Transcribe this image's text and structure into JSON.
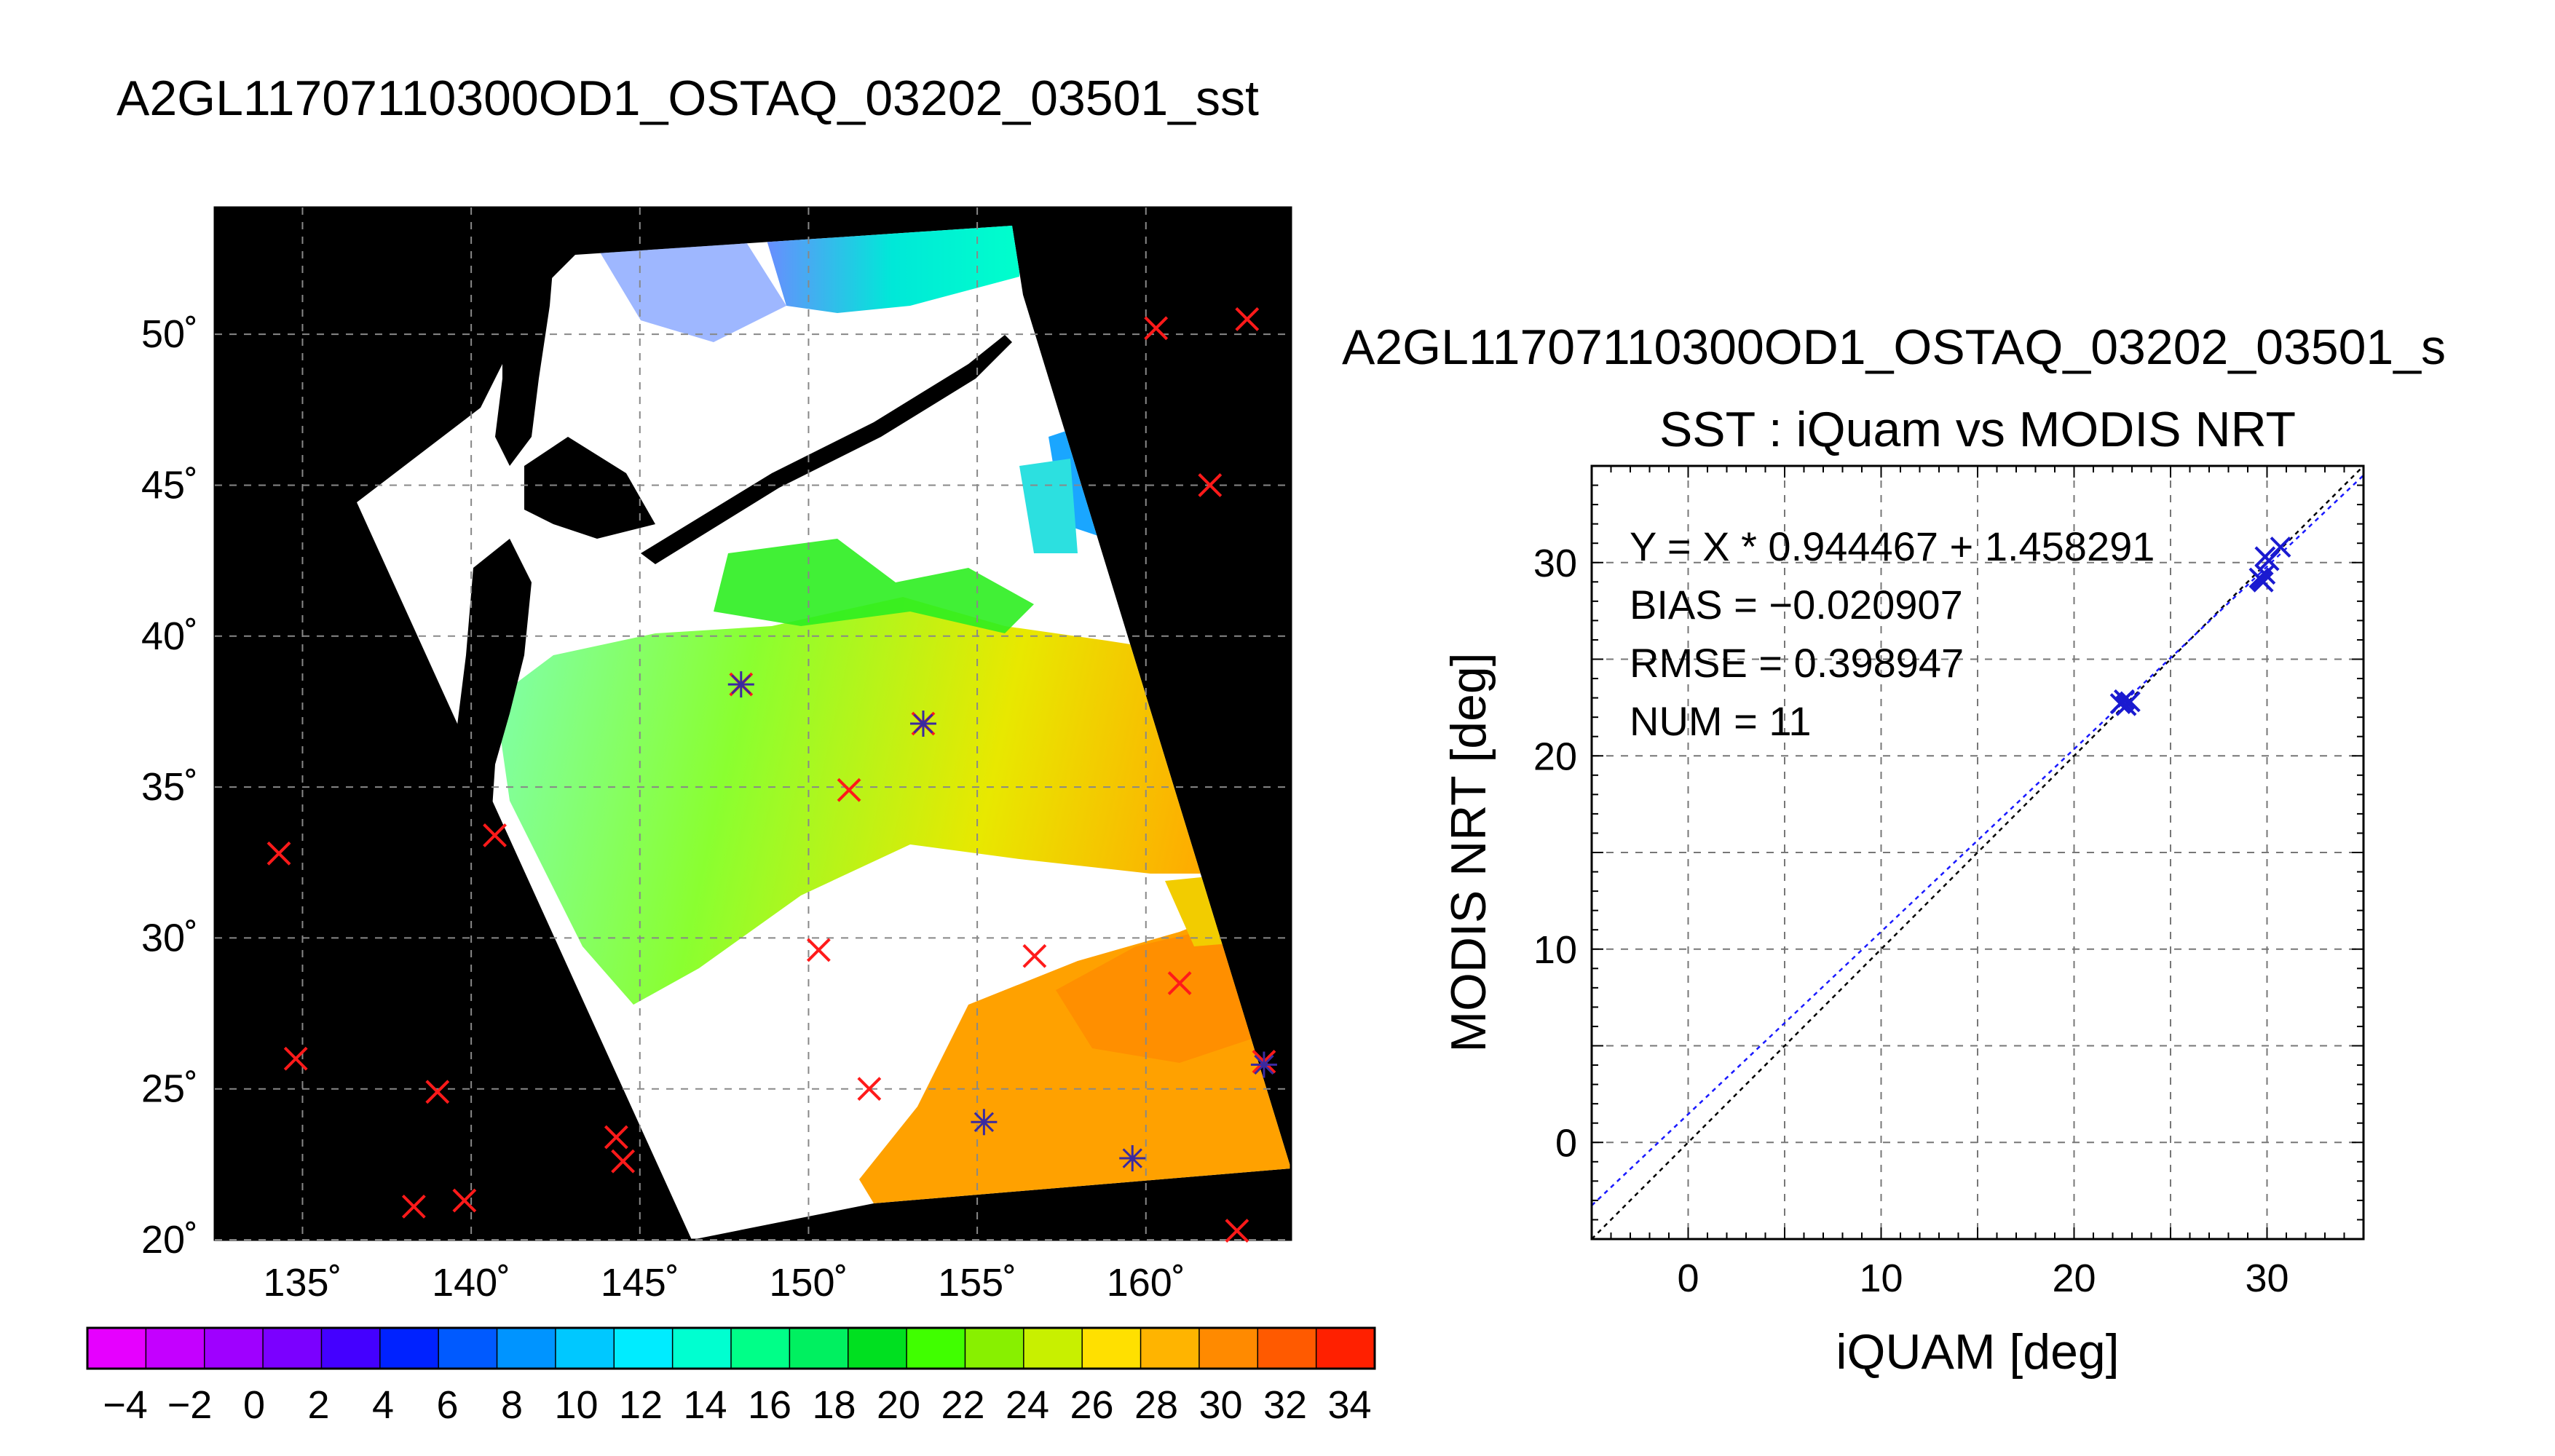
{
  "map": {
    "title": "A2GL11707110300OD1_OSTAQ_03202_03501_sst",
    "lon_ticks": [
      "135˚",
      "140˚",
      "145˚",
      "150˚",
      "155˚",
      "160˚"
    ],
    "lat_ticks": [
      "50˚",
      "45˚",
      "40˚",
      "35˚",
      "30˚",
      "25˚",
      "20˚"
    ],
    "lon_range": [
      132.4,
      164.3
    ],
    "lat_range": [
      20,
      54.2
    ],
    "markers_x": [
      [
        134.3,
        32.8
      ],
      [
        134.8,
        26.0
      ],
      [
        138.3,
        21.1
      ],
      [
        139.0,
        24.9
      ],
      [
        139.8,
        21.3
      ],
      [
        140.7,
        33.4
      ],
      [
        144.3,
        23.4
      ],
      [
        144.5,
        22.6
      ],
      [
        148.0,
        38.4
      ],
      [
        150.3,
        29.6
      ],
      [
        151.2,
        34.9
      ],
      [
        151.8,
        25.0
      ],
      [
        153.4,
        37.1
      ],
      [
        156.7,
        29.4
      ],
      [
        160.3,
        50.2
      ],
      [
        161.0,
        28.5
      ],
      [
        161.9,
        45.0
      ],
      [
        163.0,
        50.5
      ],
      [
        162.7,
        20.3
      ],
      [
        163.5,
        25.9
      ]
    ],
    "markers_star": [
      [
        148.0,
        38.4
      ],
      [
        153.4,
        37.1
      ],
      [
        155.2,
        23.9
      ],
      [
        159.6,
        22.7
      ],
      [
        163.5,
        25.8
      ]
    ]
  },
  "colorbar": {
    "labels": [
      "−4",
      "−2",
      "0",
      "2",
      "4",
      "6",
      "8",
      "10",
      "12",
      "14",
      "16",
      "18",
      "20",
      "22",
      "24",
      "26",
      "28",
      "30",
      "32",
      "34"
    ],
    "colors": [
      "#e600ff",
      "#c400ff",
      "#9f00ff",
      "#7b00ff",
      "#4400ff",
      "#0022ff",
      "#005aff",
      "#0094ff",
      "#00c8ff",
      "#00ecff",
      "#00ffd0",
      "#00ff88",
      "#00f060",
      "#00e020",
      "#40ff00",
      "#88f000",
      "#c8f000",
      "#ffe000",
      "#ffb400",
      "#ff8a00",
      "#ff5a00",
      "#ff2000"
    ]
  },
  "chart_data": {
    "type": "scatter",
    "title": "A2GL11707110300OD1_OSTAQ_03202_03501_s",
    "subtitle": "SST : iQuam vs MODIS NRT",
    "xlabel": "iQUAM [deg]",
    "ylabel": "MODIS NRT [deg]",
    "xlim": [
      -5,
      35
    ],
    "ylim": [
      -5,
      35
    ],
    "xticks": [
      "0",
      "10",
      "20",
      "30"
    ],
    "yticks": [
      "0",
      "10",
      "20",
      "30"
    ],
    "grid": true,
    "annotations": [
      "Y = X * 0.944467 + 1.458291",
      "BIAS = −0.020907",
      "RMSE = 0.398947",
      "NUM = 11"
    ],
    "fit": {
      "slope": 0.944467,
      "intercept": 1.458291,
      "color": "#1a1aff"
    },
    "identity_line_color": "#000000",
    "marker_color": "#1a1ad0",
    "points": [
      [
        22.4,
        22.7
      ],
      [
        22.6,
        22.9
      ],
      [
        22.7,
        22.6
      ],
      [
        22.9,
        22.8
      ],
      [
        29.6,
        29.2
      ],
      [
        29.8,
        29.0
      ],
      [
        29.9,
        29.4
      ],
      [
        29.7,
        29.1
      ],
      [
        29.9,
        30.3
      ],
      [
        30.1,
        30.1
      ],
      [
        30.7,
        30.8
      ]
    ]
  }
}
